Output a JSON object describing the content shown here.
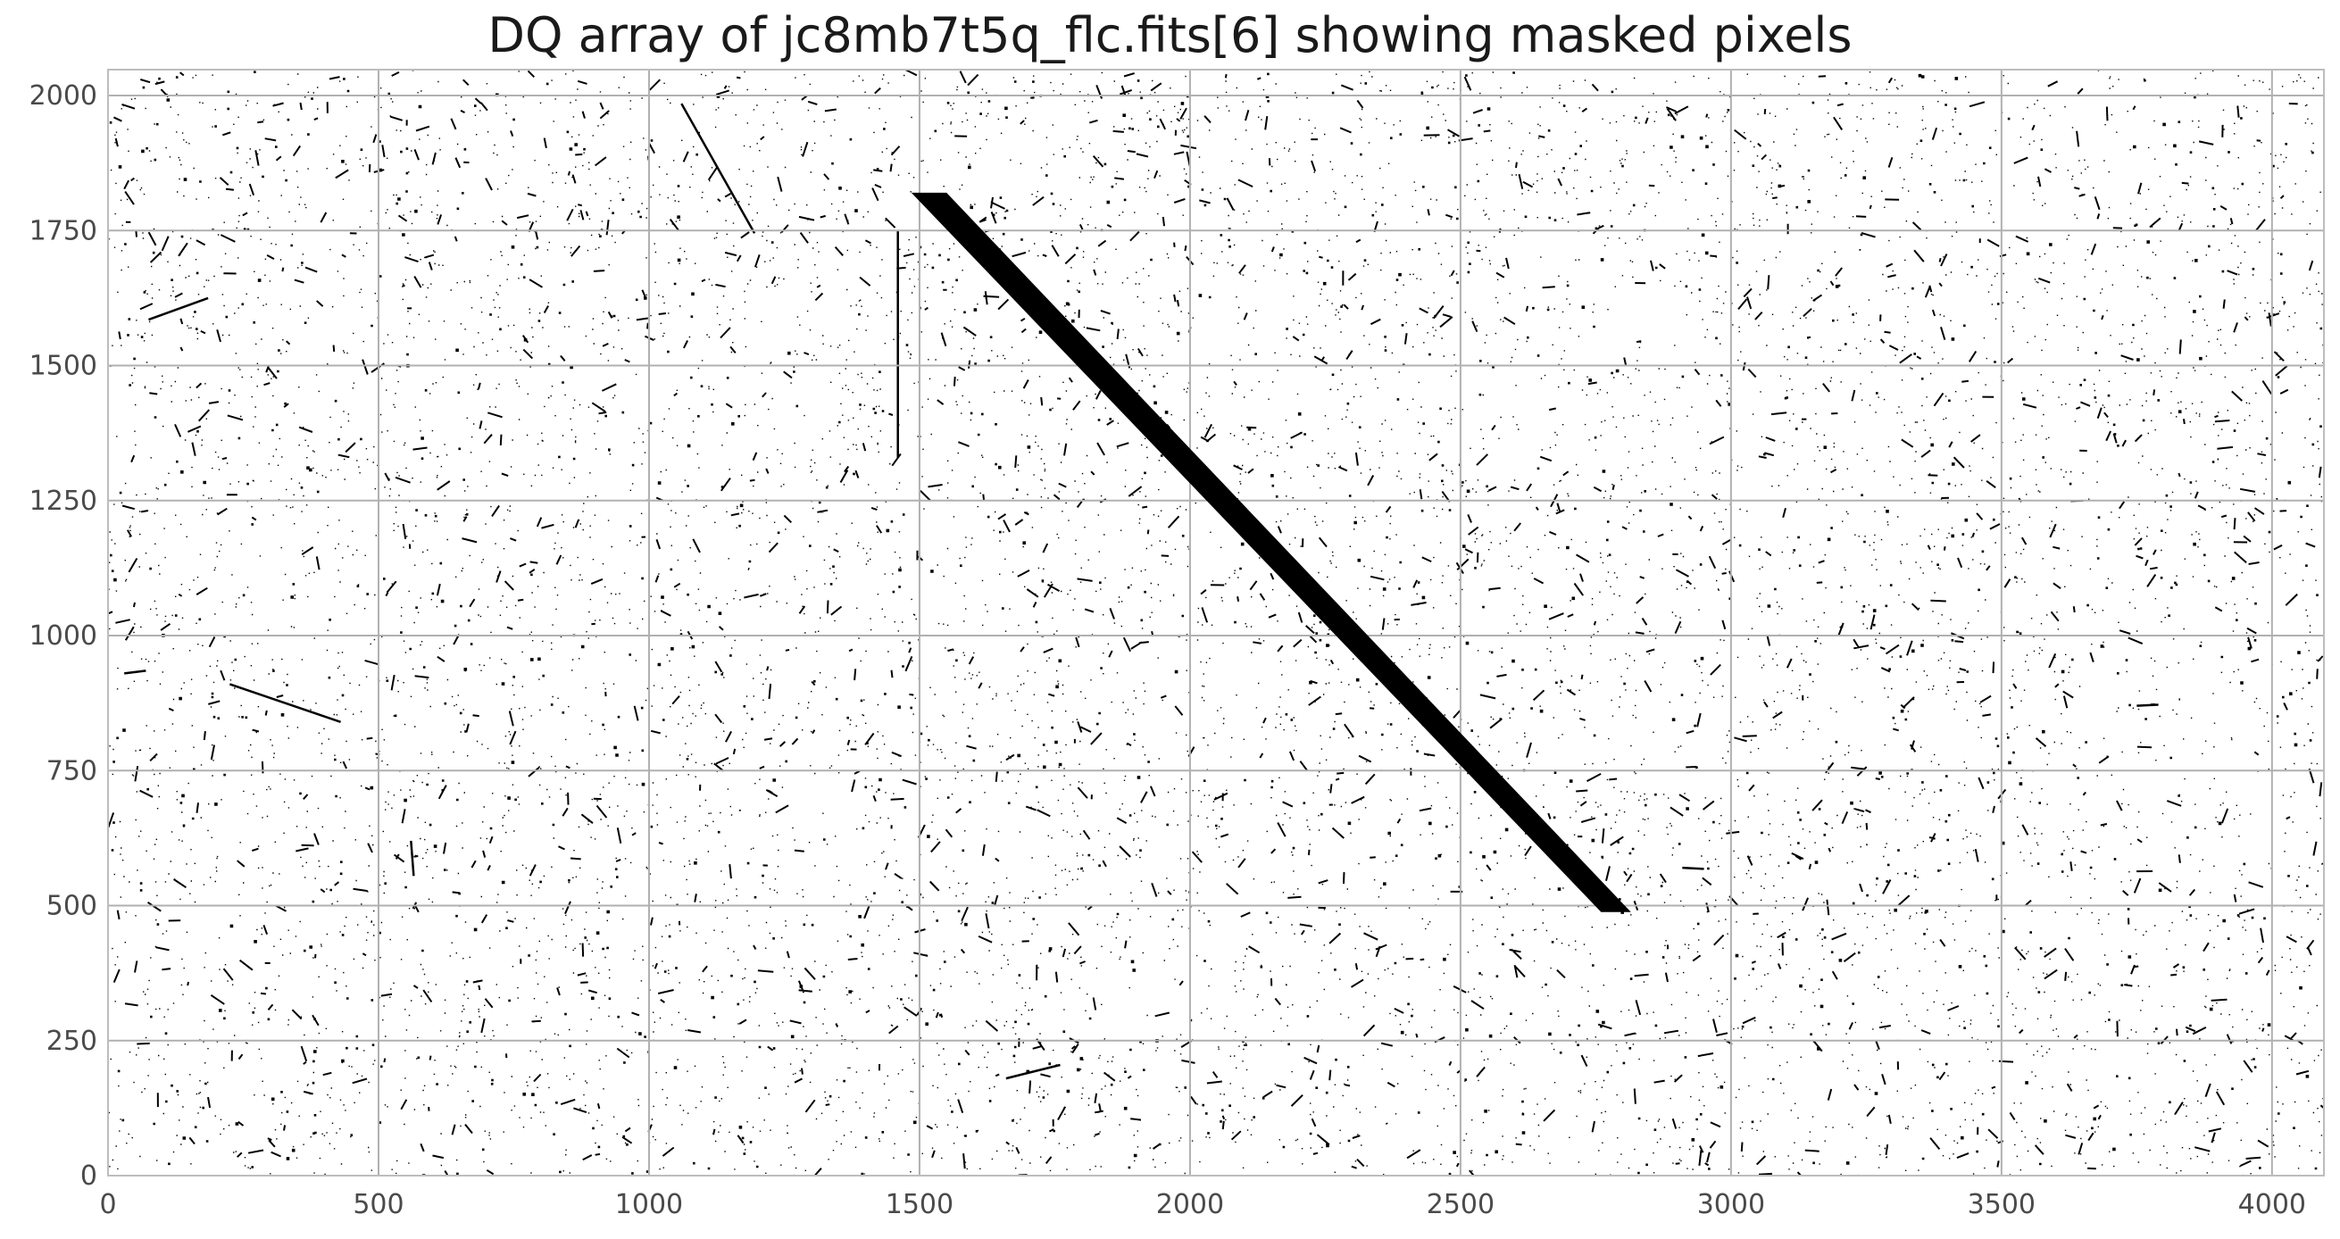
{
  "chart_data": {
    "type": "heatmap",
    "title": "DQ array of jc8mb7t5q_flc.fits[6] showing masked pixels",
    "xlabel": "",
    "ylabel": "",
    "xlim": [
      0,
      4096
    ],
    "ylim": [
      0,
      2048
    ],
    "grid": true,
    "colormap": [
      "#ffffff",
      "#000000"
    ],
    "x_ticks": [
      0,
      500,
      1000,
      1500,
      2000,
      2500,
      3000,
      3500,
      4000
    ],
    "y_ticks": [
      0,
      250,
      500,
      750,
      1000,
      1250,
      1500,
      1750,
      2000
    ],
    "x_tick_labels": [
      "0",
      "500",
      "1000",
      "1500",
      "2000",
      "2500",
      "3000",
      "3500",
      "4000"
    ],
    "y_tick_labels": [
      "0",
      "250",
      "500",
      "750",
      "1000",
      "1250",
      "1500",
      "1750",
      "2000"
    ],
    "masked_band": {
      "polygon": [
        [
          1485,
          1820
        ],
        [
          1550,
          1820
        ],
        [
          2815,
          488
        ],
        [
          2760,
          488
        ]
      ]
    },
    "masked_tracks": [
      [
        [
          1060,
          1985
        ],
        [
          1195,
          1745
        ]
      ],
      [
        [
          1460,
          1750
        ],
        [
          1460,
          1330
        ]
      ],
      [
        [
          75,
          1585
        ],
        [
          185,
          1625
        ]
      ],
      [
        [
          225,
          910
        ],
        [
          430,
          840
        ]
      ],
      [
        [
          560,
          620
        ],
        [
          565,
          555
        ]
      ],
      [
        [
          1660,
          180
        ],
        [
          1760,
          205
        ]
      ],
      [
        [
          30,
          930
        ],
        [
          70,
          935
        ]
      ],
      [
        [
          2910,
          570
        ],
        [
          2950,
          568
        ]
      ],
      [
        [
          3750,
          870
        ],
        [
          3790,
          872
        ]
      ]
    ],
    "scattered_masked_pixels": "dense field of isolated masked pixels and short cosmic-ray streaks across the whole array"
  }
}
